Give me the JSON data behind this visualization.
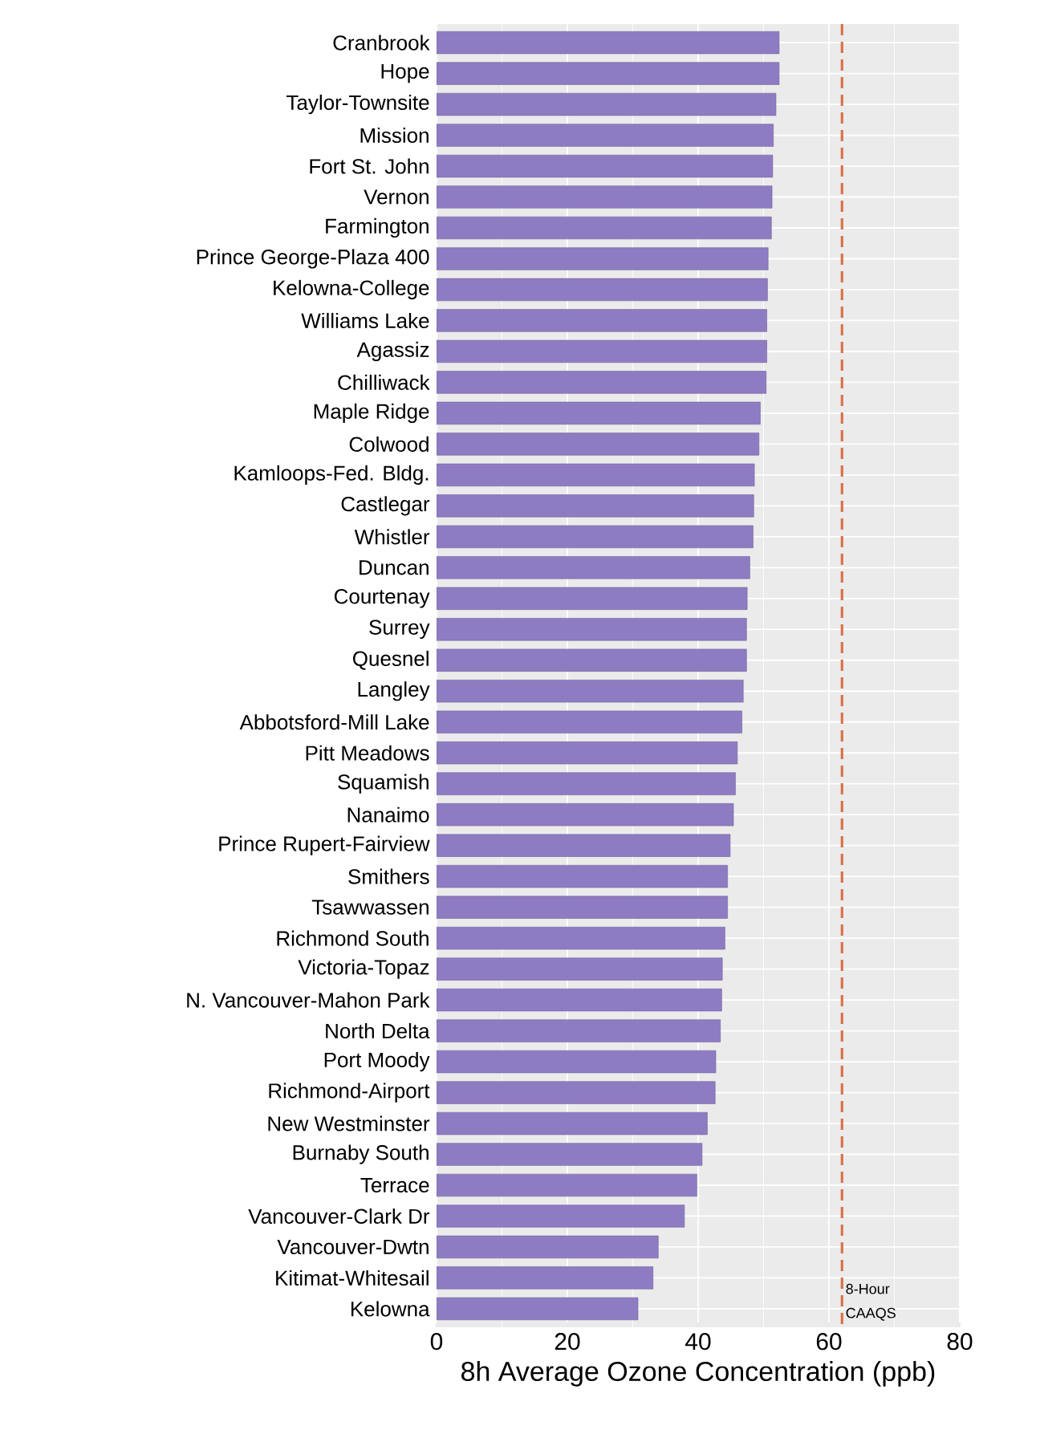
{
  "chart_data": {
    "type": "bar",
    "orientation": "horizontal",
    "xlabel": "8h Average Ozone Concentration (ppb)",
    "categories": [
      "Cranbrook",
      "Hope",
      "Taylor-Townsite",
      "Mission",
      "Fort St. John",
      "Vernon",
      "Farmington",
      "Prince George-Plaza 400",
      "Kelowna-College",
      "Williams Lake",
      "Agassiz",
      "Chilliwack",
      "Maple Ridge",
      "Colwood",
      "Kamloops-Fed. Bldg.",
      "Castlegar",
      "Whistler",
      "Duncan",
      "Courtenay",
      "Surrey",
      "Quesnel",
      "Langley",
      "Abbotsford-Mill Lake",
      "Pitt Meadows",
      "Squamish",
      "Nanaimo",
      "Prince Rupert-Fairview",
      "Smithers",
      "Tsawwassen",
      "Richmond South",
      "Victoria-Topaz",
      "N. Vancouver-Mahon Park",
      "North Delta",
      "Port Moody",
      "Richmond-Airport",
      "New Westminster",
      "Burnaby South",
      "Terrace",
      "Vancouver-Clark Dr",
      "Vancouver-Dwtn",
      "Kitimat-Whitesail",
      "Kelowna"
    ],
    "values": [
      52.4,
      52.4,
      51.9,
      51.5,
      51.4,
      51.3,
      51.2,
      50.7,
      50.6,
      50.5,
      50.5,
      50.4,
      49.5,
      49.3,
      48.6,
      48.5,
      48.4,
      47.9,
      47.5,
      47.4,
      47.4,
      46.9,
      46.7,
      46.0,
      45.7,
      45.4,
      44.9,
      44.5,
      44.5,
      44.1,
      43.7,
      43.6,
      43.4,
      42.7,
      42.6,
      41.4,
      40.6,
      39.8,
      37.9,
      33.9,
      33.1,
      30.8
    ],
    "color": "#8e7cc3",
    "xlim": [
      0,
      80
    ],
    "xticks": [
      0,
      20,
      40,
      60,
      80
    ],
    "grid": true,
    "ref_lines": [
      {
        "axis": "x",
        "value": 62,
        "label": "8-Hour CAAQS",
        "color": "#d9734a",
        "line_style": "dashed"
      }
    ]
  }
}
